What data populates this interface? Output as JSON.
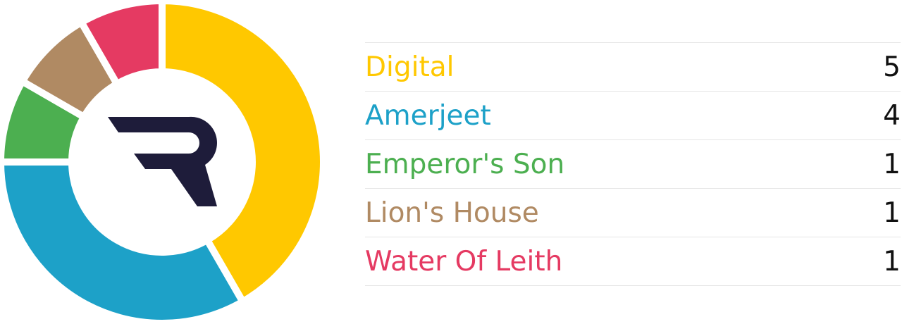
{
  "chart_data": {
    "type": "pie",
    "variant": "donut",
    "categories": [
      "Digital",
      "Amerjeet",
      "Emperor's Son",
      "Lion's House",
      "Water Of Leith"
    ],
    "values": [
      5,
      4,
      1,
      1,
      1
    ],
    "colors": [
      "#FFC800",
      "#1DA1C8",
      "#4CAF50",
      "#B08A63",
      "#E53A62"
    ],
    "legend_position": "right",
    "center_logo": "R"
  },
  "logo_color": "#1E1C3A"
}
